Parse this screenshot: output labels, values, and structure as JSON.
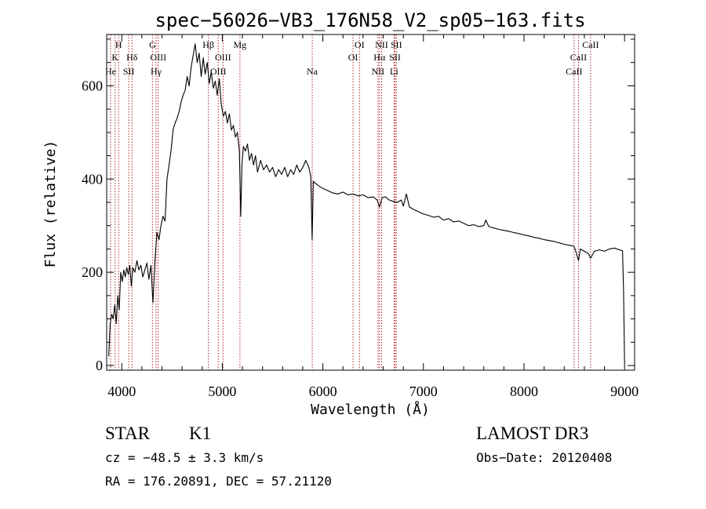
{
  "chart_data": {
    "type": "line",
    "title": "spec−56026−VB3_176N58_V2_sp05−163.fits",
    "xlabel": "Wavelength (Å)",
    "ylabel": "Flux (relative)",
    "xlim": [
      3850,
      9100
    ],
    "ylim": [
      -10,
      710
    ],
    "x_ticks": [
      4000,
      5000,
      6000,
      7000,
      8000,
      9000
    ],
    "y_ticks": [
      0,
      200,
      400,
      600
    ],
    "grid": false,
    "series": [
      {
        "points": [
          [
            3870,
            20
          ],
          [
            3885,
            90
          ],
          [
            3900,
            110
          ],
          [
            3915,
            100
          ],
          [
            3930,
            130
          ],
          [
            3945,
            90
          ],
          [
            3960,
            150
          ],
          [
            3975,
            120
          ],
          [
            3990,
            200
          ],
          [
            4005,
            180
          ],
          [
            4020,
            205
          ],
          [
            4035,
            190
          ],
          [
            4050,
            210
          ],
          [
            4065,
            195
          ],
          [
            4080,
            215
          ],
          [
            4095,
            170
          ],
          [
            4110,
            210
          ],
          [
            4130,
            200
          ],
          [
            4150,
            225
          ],
          [
            4170,
            205
          ],
          [
            4190,
            215
          ],
          [
            4210,
            190
          ],
          [
            4230,
            205
          ],
          [
            4250,
            220
          ],
          [
            4270,
            185
          ],
          [
            4290,
            215
          ],
          [
            4310,
            135
          ],
          [
            4330,
            225
          ],
          [
            4350,
            285
          ],
          [
            4370,
            270
          ],
          [
            4390,
            300
          ],
          [
            4410,
            320
          ],
          [
            4430,
            310
          ],
          [
            4450,
            400
          ],
          [
            4470,
            430
          ],
          [
            4490,
            460
          ],
          [
            4510,
            505
          ],
          [
            4530,
            520
          ],
          [
            4550,
            530
          ],
          [
            4570,
            545
          ],
          [
            4590,
            565
          ],
          [
            4610,
            580
          ],
          [
            4630,
            590
          ],
          [
            4650,
            620
          ],
          [
            4670,
            600
          ],
          [
            4690,
            640
          ],
          [
            4710,
            665
          ],
          [
            4730,
            690
          ],
          [
            4750,
            650
          ],
          [
            4770,
            670
          ],
          [
            4790,
            620
          ],
          [
            4810,
            660
          ],
          [
            4830,
            625
          ],
          [
            4850,
            650
          ],
          [
            4870,
            605
          ],
          [
            4890,
            630
          ],
          [
            4910,
            595
          ],
          [
            4930,
            610
          ],
          [
            4950,
            580
          ],
          [
            4970,
            615
          ],
          [
            4990,
            560
          ],
          [
            5010,
            535
          ],
          [
            5030,
            545
          ],
          [
            5050,
            520
          ],
          [
            5070,
            540
          ],
          [
            5090,
            505
          ],
          [
            5110,
            515
          ],
          [
            5130,
            490
          ],
          [
            5150,
            500
          ],
          [
            5170,
            460
          ],
          [
            5183,
            320
          ],
          [
            5195,
            430
          ],
          [
            5210,
            470
          ],
          [
            5230,
            460
          ],
          [
            5250,
            475
          ],
          [
            5270,
            440
          ],
          [
            5290,
            455
          ],
          [
            5310,
            430
          ],
          [
            5330,
            450
          ],
          [
            5350,
            415
          ],
          [
            5380,
            440
          ],
          [
            5410,
            420
          ],
          [
            5440,
            430
          ],
          [
            5470,
            415
          ],
          [
            5500,
            425
          ],
          [
            5530,
            405
          ],
          [
            5560,
            420
          ],
          [
            5590,
            410
          ],
          [
            5620,
            425
          ],
          [
            5650,
            405
          ],
          [
            5680,
            420
          ],
          [
            5710,
            410
          ],
          [
            5740,
            430
          ],
          [
            5770,
            415
          ],
          [
            5800,
            425
          ],
          [
            5830,
            440
          ],
          [
            5860,
            425
          ],
          [
            5880,
            405
          ],
          [
            5893,
            270
          ],
          [
            5905,
            395
          ],
          [
            5930,
            390
          ],
          [
            5960,
            385
          ],
          [
            6000,
            380
          ],
          [
            6050,
            375
          ],
          [
            6100,
            370
          ],
          [
            6150,
            368
          ],
          [
            6200,
            372
          ],
          [
            6250,
            366
          ],
          [
            6300,
            368
          ],
          [
            6350,
            364
          ],
          [
            6400,
            366
          ],
          [
            6450,
            360
          ],
          [
            6500,
            362
          ],
          [
            6540,
            355
          ],
          [
            6563,
            340
          ],
          [
            6590,
            360
          ],
          [
            6620,
            362
          ],
          [
            6660,
            355
          ],
          [
            6700,
            352
          ],
          [
            6740,
            350
          ],
          [
            6780,
            355
          ],
          [
            6800,
            342
          ],
          [
            6830,
            368
          ],
          [
            6860,
            340
          ],
          [
            6900,
            335
          ],
          [
            6950,
            330
          ],
          [
            7000,
            325
          ],
          [
            7050,
            322
          ],
          [
            7100,
            318
          ],
          [
            7150,
            320
          ],
          [
            7200,
            312
          ],
          [
            7250,
            315
          ],
          [
            7300,
            308
          ],
          [
            7350,
            310
          ],
          [
            7400,
            305
          ],
          [
            7450,
            300
          ],
          [
            7500,
            302
          ],
          [
            7550,
            298
          ],
          [
            7600,
            300
          ],
          [
            7620,
            312
          ],
          [
            7650,
            298
          ],
          [
            7700,
            295
          ],
          [
            7750,
            292
          ],
          [
            7800,
            290
          ],
          [
            7850,
            288
          ],
          [
            7900,
            285
          ],
          [
            7950,
            283
          ],
          [
            8000,
            280
          ],
          [
            8050,
            278
          ],
          [
            8100,
            275
          ],
          [
            8150,
            273
          ],
          [
            8200,
            270
          ],
          [
            8250,
            268
          ],
          [
            8300,
            266
          ],
          [
            8350,
            263
          ],
          [
            8400,
            260
          ],
          [
            8450,
            258
          ],
          [
            8498,
            256
          ],
          [
            8515,
            245
          ],
          [
            8542,
            225
          ],
          [
            8560,
            250
          ],
          [
            8600,
            245
          ],
          [
            8640,
            240
          ],
          [
            8662,
            230
          ],
          [
            8700,
            245
          ],
          [
            8750,
            248
          ],
          [
            8800,
            245
          ],
          [
            8850,
            250
          ],
          [
            8900,
            252
          ],
          [
            8950,
            248
          ],
          [
            8980,
            246
          ],
          [
            8990,
            160
          ],
          [
            9000,
            5
          ]
        ]
      }
    ],
    "spectral_lines": [
      {
        "label": "He",
        "row": 3,
        "x": 3889
      },
      {
        "label": "K",
        "row": 2,
        "x": 3934
      },
      {
        "label": "H",
        "row": 1,
        "x": 3969
      },
      {
        "label": "SII",
        "row": 3,
        "x": 4069
      },
      {
        "label": "Hδ",
        "row": 2,
        "x": 4102
      },
      {
        "label": "G",
        "row": 1,
        "x": 4305
      },
      {
        "label": "Hγ",
        "row": 3,
        "x": 4341
      },
      {
        "label": "OIII",
        "row": 2,
        "x": 4363
      },
      {
        "label": "Hβ",
        "row": 1,
        "x": 4861
      },
      {
        "label": "OIII",
        "row": 3,
        "x": 4959
      },
      {
        "label": "OIII",
        "row": 2,
        "x": 5007
      },
      {
        "label": "Mg",
        "row": 1,
        "x": 5175
      },
      {
        "label": "Na",
        "row": 3,
        "x": 5894
      },
      {
        "label": "OI",
        "row": 2,
        "x": 6300
      },
      {
        "label": "OI",
        "row": 1,
        "x": 6364
      },
      {
        "label": "NII",
        "row": 3,
        "x": 6548
      },
      {
        "label": "Hα",
        "row": 2,
        "x": 6563
      },
      {
        "label": "NII",
        "row": 1,
        "x": 6584
      },
      {
        "label": "Li",
        "row": 3,
        "x": 6708
      },
      {
        "label": "SII",
        "row": 2,
        "x": 6717
      },
      {
        "label": "SII",
        "row": 1,
        "x": 6731
      },
      {
        "label": "CaII",
        "row": 3,
        "x": 8498
      },
      {
        "label": "CaII",
        "row": 2,
        "x": 8542
      },
      {
        "label": "CaII",
        "row": 1,
        "x": 8662
      }
    ],
    "line_color": "#000000",
    "marker_color": "#b22222"
  },
  "info": {
    "class": "STAR",
    "subclass": "K1",
    "survey": "LAMOST DR3",
    "cz": "cz = −48.5 ± 3.3 km/s",
    "obs_date": "Obs−Date: 20120408",
    "coords": "RA = 176.20891, DEC =  57.21120"
  }
}
